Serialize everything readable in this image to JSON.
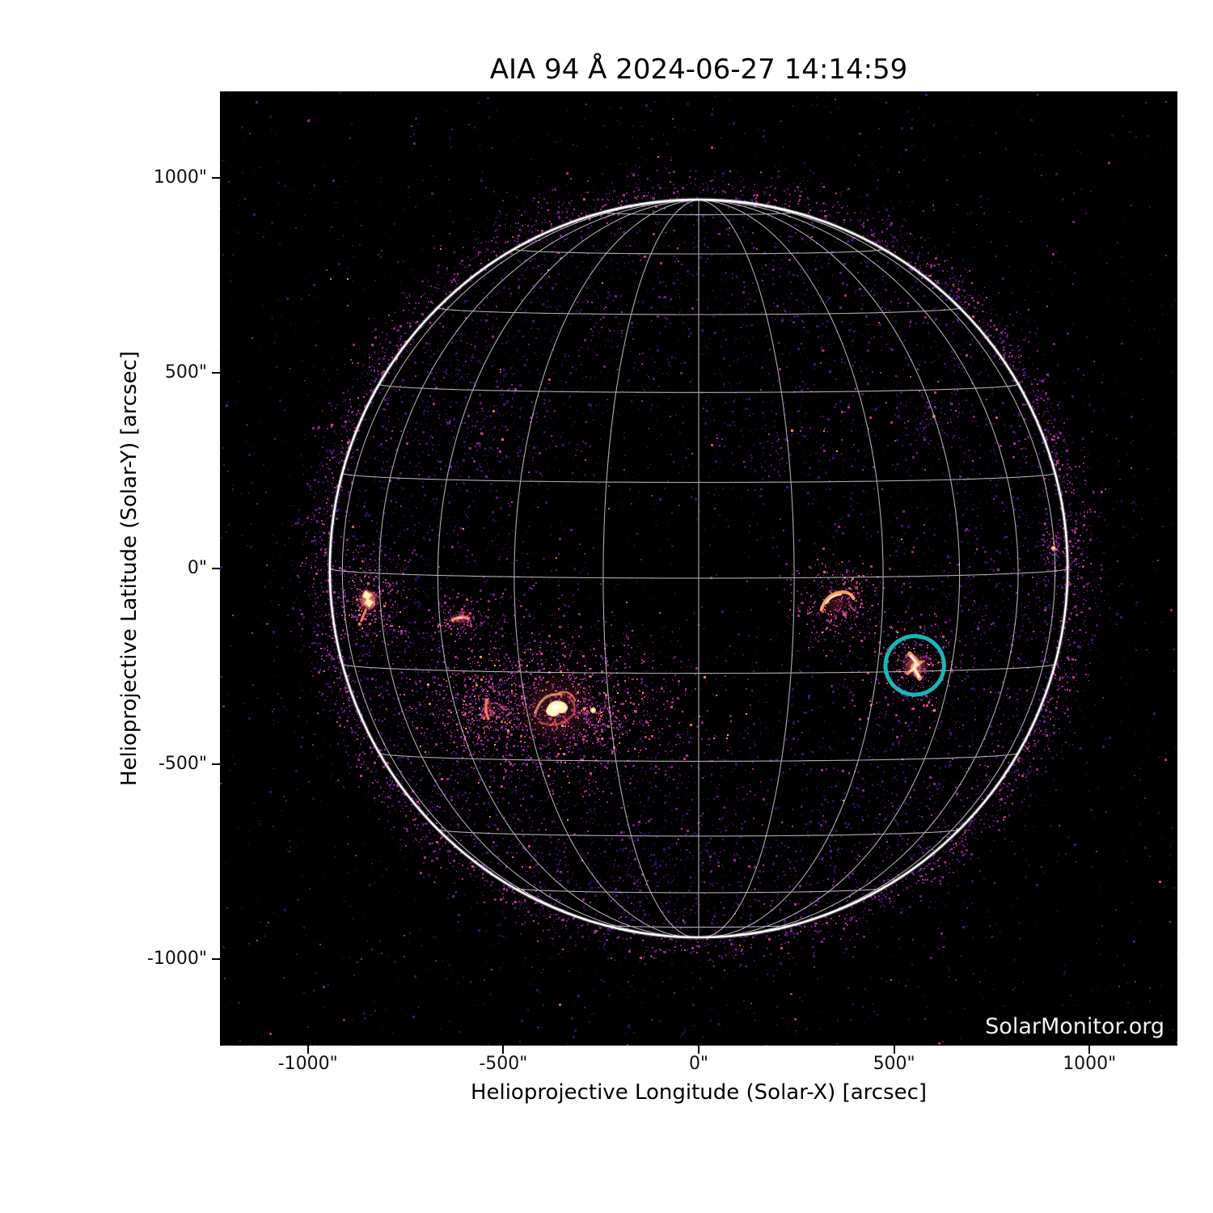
{
  "title": "AIA 94 Å 2024-06-27 14:14:59",
  "watermark": "SolarMonitor.org",
  "axes": {
    "xlabel": "Helioprojective Longitude (Solar-X) [arcsec]",
    "ylabel": "Helioprojective Latitude (Solar-Y) [arcsec]",
    "x_tick_labels": [
      "-1000\"",
      "-500\"",
      "0\"",
      "500\"",
      "1000\""
    ],
    "y_tick_labels": [
      "1000\"",
      "500\"",
      "0\"",
      "-500\"",
      "-1000\""
    ]
  },
  "chart_data": {
    "type": "heatmap",
    "title": "AIA 94 Å 2024-06-27 14:14:59",
    "instrument_label": "AIA 94 Å",
    "datetime_label": "2024-06-27 14:14:59",
    "xlabel": "Helioprojective Longitude (Solar-X) [arcsec]",
    "ylabel": "Helioprojective Latitude (Solar-Y) [arcsec]",
    "xlim": [
      -1225,
      1225
    ],
    "ylim": [
      -1225,
      1225
    ],
    "x_ticks": [
      -1000,
      -500,
      0,
      500,
      1000
    ],
    "y_ticks": [
      1000,
      500,
      0,
      -500,
      -1000
    ],
    "background": "#000000",
    "colormap_like": [
      "#000004",
      "#2c1166",
      "#721f81",
      "#b73779",
      "#de4968",
      "#fb8d61",
      "#fecf92",
      "#fffbc9"
    ],
    "solar_disk": {
      "center_arcsec": [
        0,
        0
      ],
      "radius_arcsec": 944,
      "limb_color": "#ffffff",
      "grid_type": "heliographic",
      "grid_spacing_deg": 15,
      "grid_color": "rgba(255,255,255,0.68)",
      "b0_deg": 1.5
    },
    "features": [
      {
        "name": "flare-east-limb",
        "x": -845,
        "y": -80,
        "intensity": "bright"
      },
      {
        "name": "small-streak-east",
        "x": -610,
        "y": -128,
        "intensity": "moderate"
      },
      {
        "name": "active-region-complex-southeast",
        "x": -365,
        "y": -360,
        "intensity": "bright"
      },
      {
        "name": "streak-southeast",
        "x": -540,
        "y": -360,
        "intensity": "moderate"
      },
      {
        "name": "point-southeast",
        "x": -270,
        "y": -363,
        "intensity": "moderate"
      },
      {
        "name": "active-region-west",
        "x": 355,
        "y": -85,
        "intensity": "moderate"
      },
      {
        "name": "flare-circled",
        "x": 553,
        "y": -248,
        "intensity": "bright"
      },
      {
        "name": "limb-spot-west",
        "x": 908,
        "y": 52,
        "intensity": "faint"
      },
      {
        "name": "faint-speck-upper-left",
        "x": -555,
        "y": 345,
        "intensity": "faint"
      },
      {
        "name": "faint-speck-upper-right",
        "x": 602,
        "y": 389,
        "intensity": "faint"
      },
      {
        "name": "faint-cloud-center-west",
        "x": 200,
        "y": 290,
        "intensity": "faint"
      }
    ],
    "annotation": {
      "shape": "circle",
      "x": 553,
      "y": -248,
      "radius_arcsec": 75,
      "color": "#17b8b8",
      "stroke_px": 5
    }
  }
}
